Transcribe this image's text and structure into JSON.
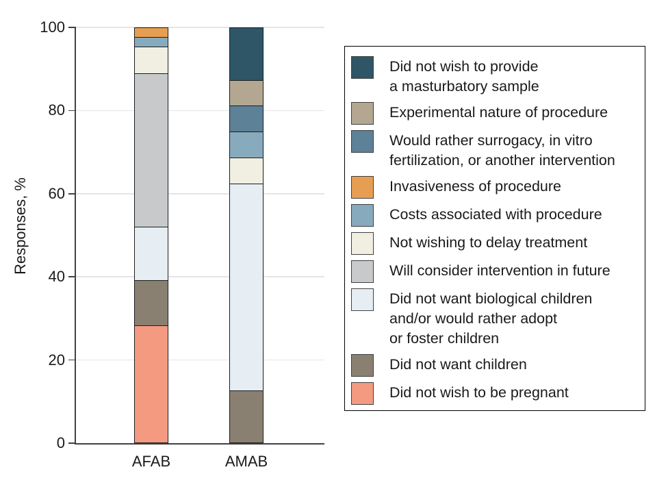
{
  "chart_data": {
    "type": "bar",
    "subtype": "stacked-vertical",
    "title": "",
    "ylabel": "Responses, %",
    "xlabel": "",
    "ylim": [
      0,
      100
    ],
    "yticks": [
      0,
      20,
      40,
      60,
      80,
      100
    ],
    "grid": true,
    "legend_position": "right-box",
    "categories": [
      "AFAB",
      "AMAB"
    ],
    "series": [
      {
        "name": "Did not wish to provide a masturbatory sample",
        "legend_lines": [
          "Did not wish to provide",
          "a masturbatory sample"
        ],
        "color": "#2e5666",
        "values": [
          0,
          12.5
        ]
      },
      {
        "name": "Experimental nature of procedure",
        "legend_lines": [
          "Experimental nature of procedure"
        ],
        "color": "#b3a791",
        "values": [
          0,
          6.25
        ]
      },
      {
        "name": "Would rather surrogacy, in vitro fertilization, or another intervention",
        "legend_lines": [
          "Would rather surrogacy, in vitro",
          "fertilization, or another intervention"
        ],
        "color": "#5d8196",
        "values": [
          0,
          6.25
        ]
      },
      {
        "name": "Invasiveness of procedure",
        "legend_lines": [
          "Invasiveness of procedure"
        ],
        "color": "#e69f52",
        "values": [
          2.2,
          0
        ]
      },
      {
        "name": "Costs associated with procedure",
        "legend_lines": [
          "Costs associated with procedure"
        ],
        "color": "#87aabd",
        "values": [
          2.2,
          6.25
        ]
      },
      {
        "name": "Not wishing to delay treatment",
        "legend_lines": [
          "Not wishing to delay treatment"
        ],
        "color": "#f0efe2",
        "values": [
          6.5,
          6.25
        ]
      },
      {
        "name": "Will consider intervention in future",
        "legend_lines": [
          "Will consider intervention in future"
        ],
        "color": "#c8c9cb",
        "values": [
          37.0,
          0
        ]
      },
      {
        "name": "Did not want biological children and/or would rather adopt or foster children",
        "legend_lines": [
          "Did not want biological children",
          "and/or would rather adopt",
          "or foster children"
        ],
        "color": "#e6eef3",
        "values": [
          13.0,
          50.0
        ]
      },
      {
        "name": "Did not want children",
        "legend_lines": [
          "Did not want children"
        ],
        "color": "#8a8071",
        "values": [
          10.9,
          12.5
        ]
      },
      {
        "name": "Did not wish to be pregnant",
        "legend_lines": [
          "Did not wish to be pregnant"
        ],
        "color": "#f49a81",
        "values": [
          28.3,
          0
        ]
      }
    ]
  }
}
